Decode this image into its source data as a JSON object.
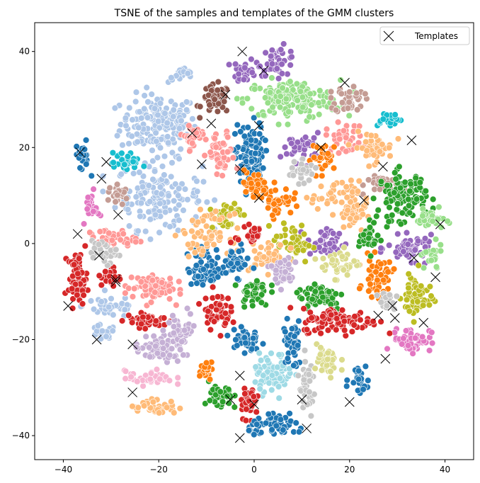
{
  "chart_data": {
    "type": "scatter",
    "title": "TSNE of the samples and templates of the GMM clusters",
    "xlabel": "",
    "ylabel": "",
    "xlim": [
      -46,
      46
    ],
    "ylim": [
      -45,
      46
    ],
    "xticks": [
      -40,
      -20,
      0,
      20,
      40
    ],
    "yticks": [
      -40,
      -20,
      0,
      20,
      40
    ],
    "grid": false,
    "legend": {
      "position": "top-right",
      "entries": [
        "Templates"
      ]
    },
    "palette": [
      "#1f77b4",
      "#aec7e8",
      "#ff7f0e",
      "#ffbb78",
      "#2ca02c",
      "#98df8a",
      "#d62728",
      "#ff9896",
      "#9467bd",
      "#c5b0d5",
      "#8c564b",
      "#c49c94",
      "#e377c2",
      "#f7b6d2",
      "#7f7f7f",
      "#c7c7c7",
      "#bcbd22",
      "#dbdb8d",
      "#17becf",
      "#9edae5"
    ],
    "clusters": [
      {
        "cx": -20,
        "cy": 25,
        "rx": 8,
        "ry": 6,
        "color": "#aec7e8",
        "n": 170
      },
      {
        "cx": -20,
        "cy": 10,
        "rx": 9,
        "ry": 7,
        "color": "#aec7e8",
        "n": 150
      },
      {
        "cx": -15,
        "cy": 35,
        "rx": 3,
        "ry": 1.5,
        "color": "#aec7e8",
        "n": 20
      },
      {
        "cx": -30,
        "cy": -13,
        "rx": 6,
        "ry": 2.5,
        "color": "#aec7e8",
        "n": 40
      },
      {
        "cx": -32,
        "cy": -19,
        "rx": 3,
        "ry": 2,
        "color": "#aec7e8",
        "n": 20
      },
      {
        "cx": -8,
        "cy": 30,
        "rx": 3,
        "ry": 3,
        "color": "#8c564b",
        "n": 50
      },
      {
        "cx": -2,
        "cy": 36,
        "rx": 2.5,
        "ry": 2.5,
        "color": "#9467bd",
        "n": 30
      },
      {
        "cx": 5,
        "cy": 38,
        "rx": 4,
        "ry": 3,
        "color": "#9467bd",
        "n": 40
      },
      {
        "cx": 8,
        "cy": 30,
        "rx": 10,
        "ry": 4,
        "color": "#98df8a",
        "n": 160
      },
      {
        "cx": 20,
        "cy": 30,
        "rx": 3,
        "ry": 3,
        "color": "#c49c94",
        "n": 40
      },
      {
        "cx": 28,
        "cy": 26,
        "rx": 3,
        "ry": 1.5,
        "color": "#17becf",
        "n": 25
      },
      {
        "cx": -1,
        "cy": 18,
        "rx": 3,
        "ry": 7,
        "color": "#1f77b4",
        "n": 100
      },
      {
        "cx": -7,
        "cy": 18,
        "rx": 3,
        "ry": 5,
        "color": "#ff9896",
        "n": 50
      },
      {
        "cx": 10,
        "cy": 20,
        "rx": 4,
        "ry": 3,
        "color": "#9467bd",
        "n": 40
      },
      {
        "cx": 19,
        "cy": 22,
        "rx": 4,
        "ry": 3,
        "color": "#ff9896",
        "n": 40
      },
      {
        "cx": 25,
        "cy": 20,
        "rx": 4,
        "ry": 3,
        "color": "#ffbb78",
        "n": 50
      },
      {
        "cx": 15,
        "cy": 18,
        "rx": 3,
        "ry": 3,
        "color": "#ff7f0e",
        "n": 30
      },
      {
        "cx": 28,
        "cy": 12,
        "rx": 4,
        "ry": 2,
        "color": "#c49c94",
        "n": 30
      },
      {
        "cx": 31,
        "cy": 10,
        "rx": 5,
        "ry": 5,
        "color": "#2ca02c",
        "n": 110
      },
      {
        "cx": 37,
        "cy": 5,
        "rx": 3,
        "ry": 2,
        "color": "#98df8a",
        "n": 30
      },
      {
        "cx": 33,
        "cy": -1,
        "rx": 5,
        "ry": 2.5,
        "color": "#9467bd",
        "n": 60
      },
      {
        "cx": 37,
        "cy": -3,
        "rx": 2.5,
        "ry": 3,
        "color": "#98df8a",
        "n": 25
      },
      {
        "cx": 34,
        "cy": -11,
        "rx": 3,
        "ry": 5,
        "color": "#bcbd22",
        "n": 60
      },
      {
        "cx": 26,
        "cy": -7,
        "rx": 3,
        "ry": 4,
        "color": "#ff7f0e",
        "n": 50
      },
      {
        "cx": 33,
        "cy": -20,
        "rx": 4,
        "ry": 2.5,
        "color": "#e377c2",
        "n": 60
      },
      {
        "cx": 20,
        "cy": 6,
        "rx": 3,
        "ry": 3,
        "color": "#ffbb78",
        "n": 40
      },
      {
        "cx": 17,
        "cy": 10,
        "rx": 5,
        "ry": 3,
        "color": "#ffbb78",
        "n": 40
      },
      {
        "cx": 15,
        "cy": 0,
        "rx": 4,
        "ry": 3,
        "color": "#9467bd",
        "n": 40
      },
      {
        "cx": 8,
        "cy": 0,
        "rx": 4,
        "ry": 4,
        "color": "#bcbd22",
        "n": 50
      },
      {
        "cx": 18,
        "cy": -4,
        "rx": 4,
        "ry": 3,
        "color": "#dbdb8d",
        "n": 40
      },
      {
        "cx": 14,
        "cy": -11,
        "rx": 5,
        "ry": 3,
        "color": "#2ca02c",
        "n": 60
      },
      {
        "cx": 18,
        "cy": -16,
        "rx": 8,
        "ry": 2.5,
        "color": "#d62728",
        "n": 100
      },
      {
        "cx": 5,
        "cy": 9,
        "rx": 3,
        "ry": 3,
        "color": "#ff7f0e",
        "n": 40
      },
      {
        "cx": 0,
        "cy": 12,
        "rx": 3,
        "ry": 3,
        "color": "#ff7f0e",
        "n": 40
      },
      {
        "cx": -6,
        "cy": 6,
        "rx": 3,
        "ry": 3,
        "color": "#bcbd22",
        "n": 40
      },
      {
        "cx": -37,
        "cy": -7,
        "rx": 2,
        "ry": 5,
        "color": "#d62728",
        "n": 70
      },
      {
        "cx": -30,
        "cy": -7,
        "rx": 2,
        "ry": 2,
        "color": "#d62728",
        "n": 30
      },
      {
        "cx": -30,
        "cy": 1,
        "rx": 5,
        "ry": 2,
        "color": "#ff9896",
        "n": 40
      },
      {
        "cx": -31,
        "cy": -2,
        "rx": 3,
        "ry": 2,
        "color": "#c7c7c7",
        "n": 30
      },
      {
        "cx": -22,
        "cy": -9,
        "rx": 5,
        "ry": 3,
        "color": "#ff9896",
        "n": 80
      },
      {
        "cx": -22,
        "cy": -16,
        "rx": 5,
        "ry": 1.5,
        "color": "#d62728",
        "n": 40
      },
      {
        "cx": -20,
        "cy": -22,
        "rx": 5,
        "ry": 3,
        "color": "#c5b0d5",
        "n": 70
      },
      {
        "cx": -22,
        "cy": -28,
        "rx": 5,
        "ry": 1.5,
        "color": "#f7b6d2",
        "n": 40
      },
      {
        "cx": -21,
        "cy": -34,
        "rx": 5,
        "ry": 1.5,
        "color": "#ffbb78",
        "n": 40
      },
      {
        "cx": -15,
        "cy": -18,
        "rx": 3,
        "ry": 4,
        "color": "#c5b0d5",
        "n": 40
      },
      {
        "cx": -10,
        "cy": -5,
        "rx": 4,
        "ry": 4,
        "color": "#1f77b4",
        "n": 60
      },
      {
        "cx": -8,
        "cy": -14,
        "rx": 3,
        "ry": 4,
        "color": "#d62728",
        "n": 50
      },
      {
        "cx": 0,
        "cy": -10,
        "rx": 3,
        "ry": 3,
        "color": "#2ca02c",
        "n": 40
      },
      {
        "cx": -2,
        "cy": -20,
        "rx": 3,
        "ry": 3,
        "color": "#1f77b4",
        "n": 40
      },
      {
        "cx": 4,
        "cy": -27,
        "rx": 4,
        "ry": 4,
        "color": "#9edae5",
        "n": 70
      },
      {
        "cx": -7,
        "cy": -32,
        "rx": 2.5,
        "ry": 3,
        "color": "#2ca02c",
        "n": 40
      },
      {
        "cx": -1,
        "cy": -33,
        "rx": 2,
        "ry": 3,
        "color": "#d62728",
        "n": 40
      },
      {
        "cx": 5,
        "cy": -38,
        "rx": 6,
        "ry": 2,
        "color": "#1f77b4",
        "n": 60
      },
      {
        "cx": 11,
        "cy": -30,
        "rx": 2,
        "ry": 6,
        "color": "#c7c7c7",
        "n": 40
      },
      {
        "cx": 15,
        "cy": -25,
        "rx": 3,
        "ry": 4,
        "color": "#dbdb8d",
        "n": 40
      },
      {
        "cx": 8,
        "cy": -21,
        "rx": 2,
        "ry": 5,
        "color": "#1f77b4",
        "n": 40
      },
      {
        "cx": 22,
        "cy": -28,
        "rx": 2,
        "ry": 3,
        "color": "#1f77b4",
        "n": 25
      },
      {
        "cx": -10,
        "cy": -26,
        "rx": 2,
        "ry": 2,
        "color": "#ff7f0e",
        "n": 25
      },
      {
        "cx": -10,
        "cy": 2,
        "rx": 5,
        "ry": 4,
        "color": "#ffbb78",
        "n": 60
      },
      {
        "cx": 3,
        "cy": -3,
        "rx": 4,
        "ry": 3,
        "color": "#ffbb78",
        "n": 50
      },
      {
        "cx": -4,
        "cy": -4,
        "rx": 3,
        "ry": 3,
        "color": "#1f77b4",
        "n": 40
      },
      {
        "cx": 6,
        "cy": -6,
        "rx": 3,
        "ry": 3,
        "color": "#c5b0d5",
        "n": 40
      },
      {
        "cx": -13,
        "cy": 22,
        "rx": 2,
        "ry": 3,
        "color": "#ff9896",
        "n": 30
      },
      {
        "cx": -36,
        "cy": 18,
        "rx": 1.5,
        "ry": 3,
        "color": "#1f77b4",
        "n": 25
      },
      {
        "cx": -27,
        "cy": 17,
        "rx": 3,
        "ry": 2,
        "color": "#17becf",
        "n": 30
      },
      {
        "cx": -34,
        "cy": 8,
        "rx": 1.5,
        "ry": 3,
        "color": "#e377c2",
        "n": 25
      },
      {
        "cx": -28,
        "cy": 10,
        "rx": 2,
        "ry": 2,
        "color": "#c49c94",
        "n": 25
      },
      {
        "cx": -1,
        "cy": 2,
        "rx": 3,
        "ry": 3,
        "color": "#d62728",
        "n": 30
      },
      {
        "cx": 10,
        "cy": 15,
        "rx": 3,
        "ry": 2,
        "color": "#c7c7c7",
        "n": 30
      },
      {
        "cx": 24,
        "cy": 1,
        "rx": 2,
        "ry": 3,
        "color": "#2ca02c",
        "n": 30
      },
      {
        "cx": 28,
        "cy": -12,
        "rx": 2,
        "ry": 2,
        "color": "#c7c7c7",
        "n": 20
      }
    ],
    "templates": [
      {
        "x": -2.5,
        "y": 40
      },
      {
        "x": 2,
        "y": 36
      },
      {
        "x": 19,
        "y": 33.5
      },
      {
        "x": -6,
        "y": 31
      },
      {
        "x": -9,
        "y": 25
      },
      {
        "x": 1,
        "y": 24.5
      },
      {
        "x": -13,
        "y": 23
      },
      {
        "x": -36.5,
        "y": 19
      },
      {
        "x": -31,
        "y": 17
      },
      {
        "x": -11,
        "y": 16.5
      },
      {
        "x": -3,
        "y": 15.5
      },
      {
        "x": 14,
        "y": 20
      },
      {
        "x": 33,
        "y": 21.5
      },
      {
        "x": 27,
        "y": 16
      },
      {
        "x": -32,
        "y": 13.5
      },
      {
        "x": 1,
        "y": 9.5
      },
      {
        "x": 23,
        "y": 9
      },
      {
        "x": -28.5,
        "y": 6
      },
      {
        "x": 39,
        "y": 4
      },
      {
        "x": -37,
        "y": 2
      },
      {
        "x": -32.5,
        "y": -2.5
      },
      {
        "x": 33.5,
        "y": -3
      },
      {
        "x": 38,
        "y": -7
      },
      {
        "x": -29,
        "y": -7.5
      },
      {
        "x": -29,
        "y": -8
      },
      {
        "x": -39,
        "y": -13
      },
      {
        "x": 29,
        "y": -13
      },
      {
        "x": 26,
        "y": -15
      },
      {
        "x": 29.5,
        "y": -15.5
      },
      {
        "x": 35.5,
        "y": -16.5
      },
      {
        "x": -33,
        "y": -20
      },
      {
        "x": -25.5,
        "y": -21
      },
      {
        "x": 27.5,
        "y": -24
      },
      {
        "x": -3,
        "y": -27.5
      },
      {
        "x": -25.5,
        "y": -31
      },
      {
        "x": -5,
        "y": -32.5
      },
      {
        "x": 0,
        "y": -33.5
      },
      {
        "x": 10,
        "y": -32.5
      },
      {
        "x": 20,
        "y": -33
      },
      {
        "x": 11,
        "y": -38.5
      },
      {
        "x": -3,
        "y": -40.5
      }
    ]
  }
}
